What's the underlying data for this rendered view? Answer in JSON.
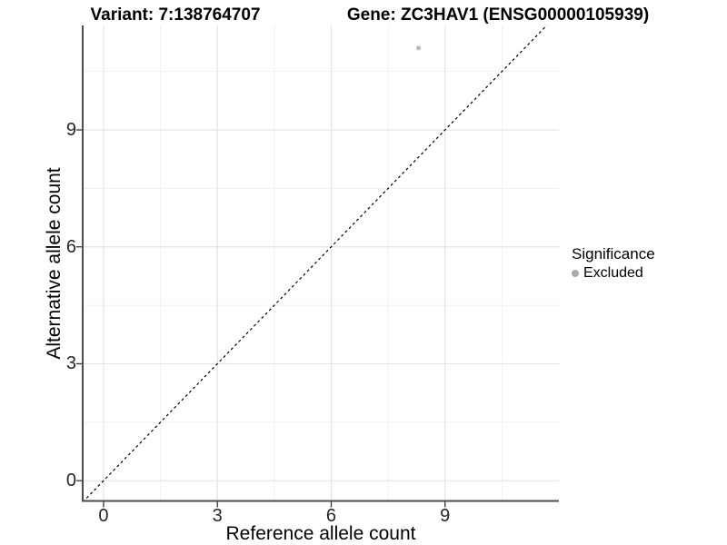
{
  "titles": {
    "left": "Variant: 7:138764707",
    "right": "Gene: ZC3HAV1 (ENSG00000105939)"
  },
  "axes": {
    "x_label": "Reference allele count",
    "y_label": "Alternative allele count"
  },
  "legend": {
    "title": "Significance",
    "items": [
      {
        "label": "Excluded",
        "color": "#aaaaaa"
      }
    ]
  },
  "colors": {
    "background": "#ffffff",
    "grid_major": "#e4e4e4",
    "grid_minor": "#f1f1f1",
    "axis_line": "#4d4d4d",
    "tick_mark": "#333333",
    "tick_text": "#262626",
    "identity_line": "#000000",
    "point": "#b8b8b8"
  },
  "chart_data": {
    "type": "scatter",
    "title": "Variant: 7:138764707 | Gene: ZC3HAV1 (ENSG00000105939)",
    "xlabel": "Reference allele count",
    "ylabel": "Alternative allele count",
    "xlim": [
      -0.55,
      12.0
    ],
    "ylim": [
      -0.52,
      11.68
    ],
    "x_major_ticks": [
      0,
      3,
      6,
      9
    ],
    "y_major_ticks": [
      0,
      3,
      6,
      9
    ],
    "x_minor_ticks": [
      1.5,
      4.5,
      7.5,
      10.5
    ],
    "y_minor_ticks": [
      1.5,
      4.5,
      7.5,
      10.5
    ],
    "grid": "major+minor",
    "legend_position": "right",
    "series": [
      {
        "name": "Excluded",
        "color": "#b8b8b8",
        "points": [
          {
            "x": 8.3,
            "y": 11.1
          }
        ]
      }
    ],
    "reference_line": {
      "type": "identity",
      "slope": 1,
      "intercept": 0,
      "style": "dashed",
      "color": "#000000"
    }
  }
}
